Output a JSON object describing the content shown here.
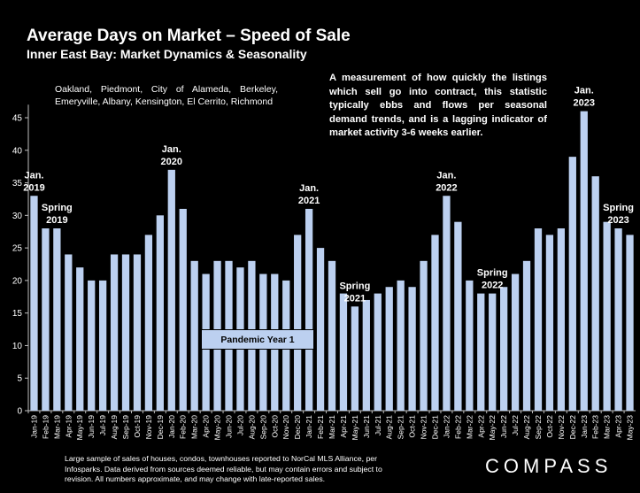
{
  "header": {
    "title": "Average Days on Market – Speed of Sale",
    "subtitle": "Inner East Bay: Market Dynamics & Seasonality"
  },
  "region_text": "Oakland, Piedmont, City of Alameda, Berkeley, Emeryville, Albany, Kensington, El Cerrito, Richmond",
  "note_text": "A measurement of how quickly the listings which sell go into contract, this statistic typically ebbs and flows per seasonal demand trends, and is a lagging indicator of market activity 3-6 weeks earlier.",
  "footer_text": "Large sample of sales of houses, condos, townhouses reported to NorCal MLS Alliance, per Infosparks. Data derived from sources deemed reliable, but may contain errors and subject to revision. All numbers approximate, and may change with late-reported sales.",
  "logo": "COMPASS",
  "pandemic_label": "Pandemic Year 1",
  "colors": {
    "bar": "#bcd0f0",
    "background": "#000000",
    "text": "#ffffff",
    "axis": "#bfbfbf"
  },
  "chart_data": {
    "type": "bar",
    "title": "Average Days on Market – Speed of Sale",
    "ylim": [
      0,
      47
    ],
    "yticks": [
      0,
      5,
      10,
      15,
      20,
      25,
      30,
      35,
      40,
      45
    ],
    "grid": false,
    "categories": [
      "Jan-19",
      "Feb-19",
      "Mar-19",
      "Apr-19",
      "May-19",
      "Jun-19",
      "Jul-19",
      "Aug-19",
      "Sep-19",
      "Oct-19",
      "Nov-19",
      "Dec-19",
      "Jan-20",
      "Feb-20",
      "Mar-20",
      "Apr-20",
      "May-20",
      "Jun-20",
      "Jul-20",
      "Aug-20",
      "Sep-20",
      "Oct-20",
      "Nov-20",
      "Dec-20",
      "Jan-21",
      "Feb-21",
      "Mar-21",
      "Apr-21",
      "May-21",
      "Jun-21",
      "Jul-21",
      "Aug-21",
      "Sep-21",
      "Oct-21",
      "Nov-21",
      "Dec-21",
      "Jan-22",
      "Feb-22",
      "Mar-22",
      "Apr-22",
      "May-22",
      "Jun-22",
      "Jul-22",
      "Aug-22",
      "Sep-22",
      "Oct-22",
      "Nov-22",
      "Dec-22",
      "Jan-23",
      "Feb-23",
      "Mar-23",
      "Apr-23",
      "May-23"
    ],
    "values": [
      33,
      28,
      28,
      24,
      22,
      20,
      20,
      24,
      24,
      24,
      27,
      30,
      37,
      31,
      23,
      21,
      23,
      23,
      22,
      23,
      21,
      21,
      20,
      27,
      31,
      25,
      23,
      18,
      16,
      17,
      18,
      19,
      20,
      19,
      23,
      27,
      33,
      29,
      20,
      18,
      18,
      19,
      21,
      23,
      28,
      27,
      28,
      39,
      46,
      36,
      29,
      28,
      27
    ],
    "annotations": [
      {
        "index": 0,
        "lines": [
          "Jan.",
          "2019"
        ]
      },
      {
        "index": 2,
        "lines": [
          "Spring",
          "2019"
        ]
      },
      {
        "index": 12,
        "lines": [
          "Jan.",
          "2020"
        ]
      },
      {
        "index": 24,
        "lines": [
          "Jan.",
          "2021"
        ]
      },
      {
        "index": 28,
        "lines": [
          "Spring",
          "2021"
        ]
      },
      {
        "index": 36,
        "lines": [
          "Jan.",
          "2022"
        ]
      },
      {
        "index": 40,
        "lines": [
          "Spring",
          "2022"
        ]
      },
      {
        "index": 48,
        "lines": [
          "Jan.",
          "2023"
        ]
      },
      {
        "index": 51,
        "lines": [
          "Spring",
          "2023"
        ]
      }
    ]
  }
}
